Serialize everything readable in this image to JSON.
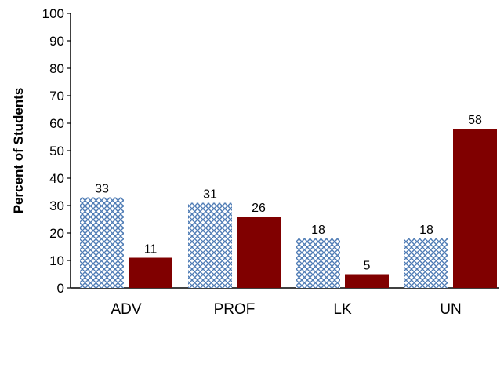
{
  "chart_data": {
    "type": "bar",
    "categories": [
      "ADV",
      "PROF",
      "LK",
      "UN"
    ],
    "series": [
      {
        "values": [
          33,
          31,
          18,
          18
        ],
        "color": "#4f7cb5",
        "fill": "crosshatch"
      },
      {
        "values": [
          11,
          26,
          5,
          58
        ],
        "color": "#800000",
        "fill": "solid"
      }
    ],
    "ylabel": "Percent of Students",
    "xlabel": "",
    "ylim": [
      0,
      100
    ],
    "yticks": [
      0,
      10,
      20,
      30,
      40,
      50,
      60,
      70,
      80,
      90,
      100
    ],
    "grid": false,
    "legend": "none"
  }
}
